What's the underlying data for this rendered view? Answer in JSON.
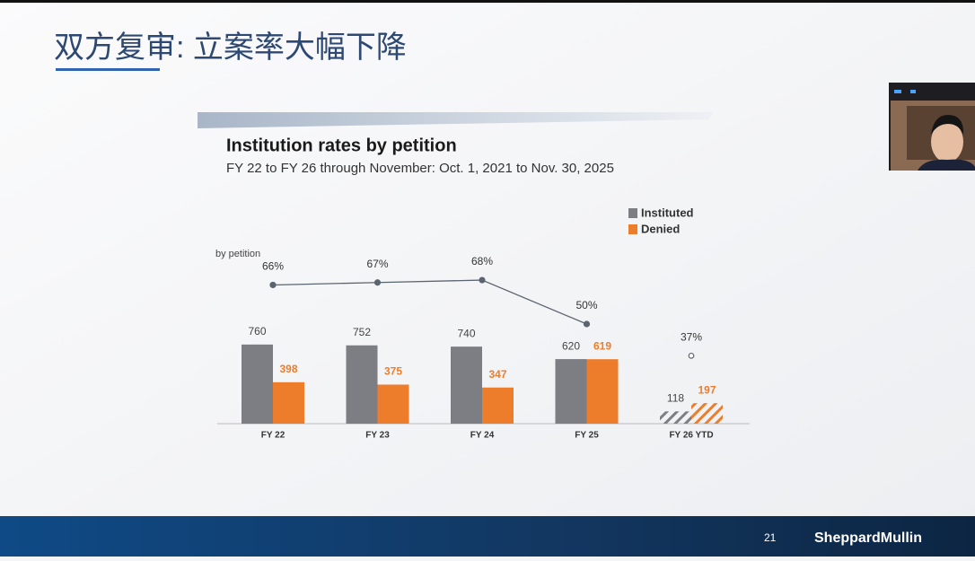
{
  "slide": {
    "title": "双方复审: 立案率大幅下降",
    "page": "21",
    "brand": "SheppardMullin"
  },
  "chart_data": {
    "type": "bar",
    "title": "Institution rates by petition",
    "subtitle": "FY 22 to FY 26 through November: Oct. 1, 2021 to Nov. 30, 2025",
    "axis_label": "by petition",
    "categories": [
      "FY 22",
      "FY 23",
      "FY 24",
      "FY 25",
      "FY 26 YTD"
    ],
    "series": [
      {
        "name": "Instituted",
        "color": "#7d7d84",
        "label_color": "#444444",
        "values": [
          760,
          752,
          740,
          620,
          118
        ]
      },
      {
        "name": "Denied",
        "color": "#ee7d2b",
        "label_color": "#ee7d2b",
        "values": [
          398,
          375,
          347,
          619,
          197
        ]
      }
    ],
    "rate": {
      "color": "#5b6570",
      "values": [
        66,
        67,
        68,
        50,
        37
      ],
      "value_labels": [
        "66%",
        "67%",
        "68%",
        "50%",
        "37%"
      ]
    },
    "hatched_last": true,
    "detached_last": true,
    "legend": "upper right"
  }
}
